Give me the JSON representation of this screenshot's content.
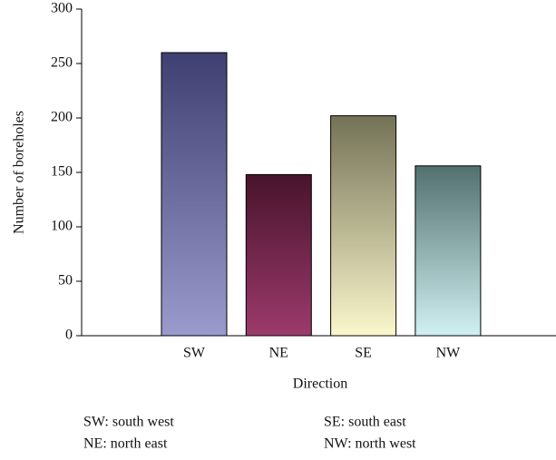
{
  "chart_data": {
    "type": "bar",
    "categories": [
      "SW",
      "NE",
      "SE",
      "NW"
    ],
    "values": [
      260,
      148,
      202,
      156
    ],
    "gradients": [
      {
        "top": "#3f3f72",
        "bottom": "#9a9acc"
      },
      {
        "top": "#48142c",
        "bottom": "#9c3a6c"
      },
      {
        "top": "#747256",
        "bottom": "#faf7cc"
      },
      {
        "top": "#52706e",
        "bottom": "#d0f0f2"
      }
    ],
    "ylim": [
      0,
      300
    ],
    "yticks": [
      0,
      50,
      100,
      150,
      200,
      250,
      300
    ],
    "y_label": "Number of boreholes",
    "x_label": "Direction",
    "notes": [
      "SW: south west",
      "NE: north east",
      "SE: south east",
      "NW: north west"
    ]
  }
}
